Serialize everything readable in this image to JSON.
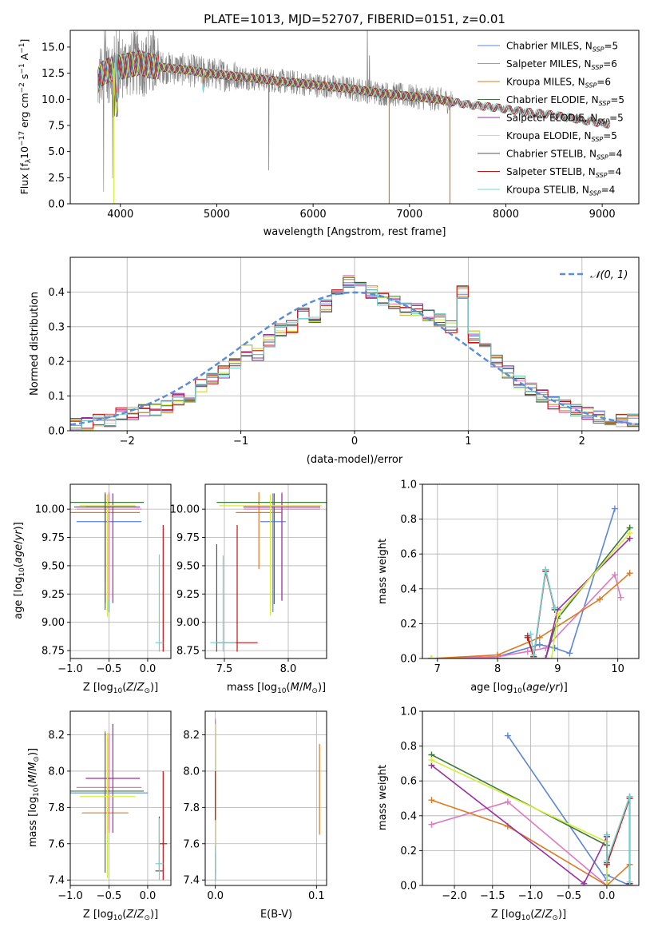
{
  "title": "PLATE=1013, MJD=52707, FIBERID=0151, z=0.01",
  "colors": {
    "chabrier_miles": "#5b86d9",
    "salpeter_miles": "#e079bd",
    "kroupa_miles": "#dd7a20",
    "chabrier_elodie": "#3f7a3c",
    "salpeter_elodie": "#9b2fa2",
    "kroupa_elodie": "#d6ee3a",
    "chabrier_stelib": "#555555",
    "salpeter_stelib": "#cc1010",
    "kroupa_stelib": "#72d3d3",
    "data": "#808080",
    "gaussian": "#5b8ed8"
  },
  "legend_spectrum": [
    {
      "label": "Chabrier MILES, N",
      "sub": "SSP",
      "suffix": "=5",
      "color": "#5b86d9"
    },
    {
      "label": "Salpeter MILES, N",
      "sub": "SSP",
      "suffix": "=6",
      "color": "#e079bd"
    },
    {
      "label": "Kroupa MILES, N",
      "sub": "SSP",
      "suffix": "=6",
      "color": "#dd7a20"
    },
    {
      "label": "Chabrier ELODIE, N",
      "sub": "SSP",
      "suffix": "=5",
      "color": "#3f7a3c"
    },
    {
      "label": "Salpeter ELODIE, N",
      "sub": "SSP",
      "suffix": "=5",
      "color": "#9b2fa2"
    },
    {
      "label": "Kroupa ELODIE, N",
      "sub": "SSP",
      "suffix": "=5",
      "color": "#d6ee3a"
    },
    {
      "label": "Chabrier STELIB, N",
      "sub": "SSP",
      "suffix": "=4",
      "color": "#555555"
    },
    {
      "label": "Salpeter STELIB, N",
      "sub": "SSP",
      "suffix": "=4",
      "color": "#cc1010"
    },
    {
      "label": "Kroupa STELIB, N",
      "sub": "SSP",
      "suffix": "=4",
      "color": "#72d3d3"
    }
  ],
  "legend_hist": {
    "label": "𝒩(0, 1)"
  },
  "chart_data": [
    {
      "id": "spectrum",
      "type": "line",
      "title": "PLATE=1013, MJD=52707, FIBERID=0151, z=0.01",
      "xlabel": "wavelength [Angstrom, rest frame]",
      "ylabel": "Flux [f_λ 10^-17 erg cm^-2 s^-1 A^-1]",
      "xlim": [
        3480,
        9380
      ],
      "ylim": [
        0,
        16.6
      ],
      "xticks": [
        4000,
        5000,
        6000,
        7000,
        8000,
        9000
      ],
      "yticks": [
        0.0,
        2.5,
        5.0,
        7.5,
        10.0,
        12.5,
        15.0
      ],
      "continuum": {
        "x": [
          3760,
          3800,
          3900,
          4000,
          4100,
          4200,
          4300,
          4500,
          4700,
          4900,
          5100,
          5300,
          5500,
          5800,
          6100,
          6400,
          6700,
          7000,
          7300,
          7600,
          7900,
          8200,
          8500,
          8800,
          9080
        ],
        "y": [
          11.6,
          12.4,
          12.9,
          13.1,
          13.3,
          13.5,
          13.2,
          13.0,
          12.8,
          12.5,
          12.3,
          12.1,
          11.9,
          11.6,
          11.3,
          11.0,
          10.6,
          10.3,
          10.0,
          9.5,
          9.2,
          8.8,
          8.5,
          8.0,
          7.6
        ]
      },
      "model_dips": [
        {
          "x": 3933,
          "y": 0
        },
        {
          "x": 6790,
          "y": 0
        },
        {
          "x": 7420,
          "y": 0
        }
      ],
      "data_spikes": [
        {
          "x": 5540,
          "y": 3.2
        },
        {
          "x": 6563,
          "y": 16.6
        },
        {
          "x": 6585,
          "y": 14.2
        },
        {
          "x": 4340,
          "y": 16.6
        }
      ]
    },
    {
      "id": "residual_hist",
      "type": "line",
      "xlabel": "(data-model)/error",
      "ylabel": "Normed distribution",
      "xlim": [
        -2.5,
        2.5
      ],
      "ylim": [
        0,
        0.5
      ],
      "xticks": [
        -2,
        -1,
        0,
        1,
        2
      ],
      "yticks": [
        0.0,
        0.1,
        0.2,
        0.3,
        0.4
      ],
      "bin_width": 0.1,
      "bin_start": -2.5,
      "gaussian": {
        "name": "𝒩(0, 1)",
        "mu": 0,
        "sigma": 1
      },
      "series_values": [
        [
          0.02,
          0.02,
          0.03,
          0.03,
          0.05,
          0.05,
          0.06,
          0.06,
          0.07,
          0.09,
          0.1,
          0.13,
          0.15,
          0.17,
          0.19,
          0.23,
          0.22,
          0.26,
          0.29,
          0.3,
          0.34,
          0.33,
          0.36,
          0.4,
          0.43,
          0.41,
          0.4,
          0.38,
          0.37,
          0.35,
          0.35,
          0.33,
          0.32,
          0.3,
          0.4,
          0.27,
          0.24,
          0.2,
          0.17,
          0.14,
          0.12,
          0.1,
          0.08,
          0.07,
          0.06,
          0.05,
          0.04,
          0.03,
          0.03,
          0.03
        ]
      ]
    },
    {
      "id": "age_vs_Z",
      "type": "scatter",
      "xlabel": "Z [log10(Z/Z☉)]",
      "ylabel": "age [log10(age/yr)]",
      "xlim": [
        -1.0,
        0.3
      ],
      "ylim": [
        8.68,
        10.22
      ],
      "xticks": [
        -1.0,
        -0.5,
        0.0
      ],
      "yticks": [
        8.75,
        9.0,
        9.25,
        9.5,
        9.75,
        10.0
      ],
      "points": [
        {
          "x": -0.5,
          "y": 9.89,
          "xerr": 0.42,
          "yerr": [
            0.8,
            0.25
          ],
          "color": "#5b86d9"
        },
        {
          "x": -0.5,
          "y": 10.0,
          "xerr": 0.42,
          "yerr": [
            0.8,
            0.15
          ],
          "color": "#e079bd"
        },
        {
          "x": -0.55,
          "y": 9.97,
          "xerr": 0.45,
          "yerr": [
            0.6,
            0.18
          ],
          "color": "#dd7a20"
        },
        {
          "x": -0.55,
          "y": 10.06,
          "xerr": 0.5,
          "yerr": [
            0.95,
            0.08
          ],
          "color": "#3f7a3c"
        },
        {
          "x": -0.45,
          "y": 10.02,
          "xerr": 0.35,
          "yerr": [
            0.85,
            0.12
          ],
          "color": "#9b2fa2"
        },
        {
          "x": -0.52,
          "y": 10.03,
          "xerr": 0.36,
          "yerr": [
            0.98,
            0.1
          ],
          "color": "#d6ee3a"
        },
        {
          "x": -0.55,
          "y": 10.02,
          "xerr": 0.4,
          "yerr": [
            0.85,
            0.11
          ],
          "color": "#555555"
        },
        {
          "x": 0.2,
          "y": 8.82,
          "xerr": 0.0,
          "yerr": [
            0.08,
            1.04
          ],
          "color": "#cc1010"
        },
        {
          "x": 0.15,
          "y": 8.82,
          "xerr": 0.05,
          "yerr": [
            0.08,
            0.78
          ],
          "color": "#72d3d3"
        }
      ]
    },
    {
      "id": "age_vs_mass",
      "type": "scatter",
      "xlabel": "mass [log10(M/M☉)]",
      "ylabel": "",
      "xlim": [
        7.35,
        8.3
      ],
      "ylim": [
        8.68,
        10.22
      ],
      "xticks": [
        7.5,
        8.0
      ],
      "yticks": [
        8.75,
        9.0,
        9.25,
        9.5,
        9.75,
        10.0
      ],
      "points": [
        {
          "x": 7.88,
          "y": 9.89,
          "xerr": 0.1,
          "yerr": [
            0.8,
            0.25
          ],
          "color": "#5b86d9"
        },
        {
          "x": 7.95,
          "y": 10.0,
          "xerr": 0.3,
          "yerr": [
            0.8,
            0.15
          ],
          "color": "#e079bd"
        },
        {
          "x": 7.77,
          "y": 9.97,
          "xerr": 0.18,
          "yerr": [
            0.5,
            0.18
          ],
          "color": "#dd7a20"
        },
        {
          "x": 7.89,
          "y": 10.06,
          "xerr": 0.45,
          "yerr": [
            0.9,
            0.08
          ],
          "color": "#3f7a3c"
        },
        {
          "x": 7.95,
          "y": 10.02,
          "xerr": 0.3,
          "yerr": [
            0.83,
            0.12
          ],
          "color": "#9b2fa2"
        },
        {
          "x": 7.86,
          "y": 10.03,
          "xerr": 0.4,
          "yerr": [
            0.97,
            0.1
          ],
          "color": "#d6ee3a"
        },
        {
          "x": 7.44,
          "y": 8.82,
          "xerr": 0.0,
          "yerr": [
            0.08,
            0.87
          ],
          "color": "#555555"
        },
        {
          "x": 7.6,
          "y": 8.82,
          "xerr": 0.16,
          "yerr": [
            0.08,
            1.04
          ],
          "color": "#cc1010"
        },
        {
          "x": 7.49,
          "y": 8.82,
          "xerr": 0.1,
          "yerr": [
            0.08,
            0.77
          ],
          "color": "#72d3d3"
        }
      ]
    },
    {
      "id": "mass_weight_vs_age",
      "type": "line",
      "xlabel": "age [log10(age/yr)]",
      "ylabel": "mass weight",
      "xlim": [
        6.75,
        10.35
      ],
      "ylim": [
        0,
        1.0
      ],
      "xticks": [
        7,
        8,
        9,
        10
      ],
      "yticks": [
        0.0,
        0.2,
        0.4,
        0.6,
        0.8,
        1.0
      ],
      "series": [
        {
          "name": "Chabrier MILES",
          "color": "#5b86d9",
          "x": [
            6.9,
            8.0,
            8.7,
            8.95,
            9.2,
            9.95
          ],
          "y": [
            0.0,
            0.01,
            0.08,
            0.06,
            0.03,
            0.86
          ]
        },
        {
          "name": "Salpeter MILES",
          "color": "#e079bd",
          "x": [
            6.9,
            8.0,
            8.5,
            8.8,
            9.95,
            10.05
          ],
          "y": [
            0.0,
            0.01,
            0.04,
            0.06,
            0.48,
            0.35
          ]
        },
        {
          "name": "Kroupa MILES",
          "color": "#dd7a20",
          "x": [
            6.9,
            8.0,
            8.7,
            9.7,
            10.2
          ],
          "y": [
            0.0,
            0.02,
            0.12,
            0.34,
            0.49
          ]
        },
        {
          "name": "Chabrier ELODIE",
          "color": "#3f7a3c",
          "x": [
            6.9,
            8.8,
            9.0,
            10.2
          ],
          "y": [
            0.0,
            0.0,
            0.23,
            0.75
          ]
        },
        {
          "name": "Salpeter ELODIE",
          "color": "#9b2fa2",
          "x": [
            6.9,
            8.8,
            9.0,
            10.2
          ],
          "y": [
            0.0,
            0.0,
            0.28,
            0.69
          ]
        },
        {
          "name": "Kroupa ELODIE",
          "color": "#d6ee3a",
          "x": [
            6.9,
            8.9,
            9.0,
            10.2
          ],
          "y": [
            0.0,
            0.0,
            0.25,
            0.72
          ]
        },
        {
          "name": "Chabrier STELIB",
          "color": "#555555",
          "x": [
            8.5,
            8.6,
            8.8,
            8.95
          ],
          "y": [
            0.13,
            0.01,
            0.51,
            0.28
          ]
        },
        {
          "name": "Salpeter STELIB",
          "color": "#cc1010",
          "x": [
            8.5,
            8.6,
            8.8,
            8.95
          ],
          "y": [
            0.12,
            0.01,
            0.5,
            0.29
          ]
        },
        {
          "name": "Kroupa STELIB",
          "color": "#72d3d3",
          "x": [
            8.55,
            8.6,
            8.8,
            8.95
          ],
          "y": [
            0.14,
            0.02,
            0.51,
            0.29
          ]
        }
      ]
    },
    {
      "id": "mass_vs_Z",
      "type": "scatter",
      "xlabel": "Z [log10(Z/Z☉)]",
      "ylabel": "mass [log10(M/M☉)]",
      "xlim": [
        -1.0,
        0.3
      ],
      "ylim": [
        7.37,
        8.33
      ],
      "xticks": [
        -1.0,
        -0.5,
        0.0
      ],
      "yticks": [
        7.4,
        7.6,
        7.8,
        8.0,
        8.2
      ],
      "points": [
        {
          "x": -0.5,
          "y": 7.88,
          "xerr": 0.5,
          "yerr": [
            0.2,
            0.3
          ],
          "color": "#5b86d9"
        },
        {
          "x": -0.5,
          "y": 7.91,
          "xerr": 0.42,
          "yerr": [
            0.25,
            0.3
          ],
          "color": "#e079bd"
        },
        {
          "x": -0.55,
          "y": 7.77,
          "xerr": 0.3,
          "yerr": [
            0.12,
            0.45
          ],
          "color": "#dd7a20"
        },
        {
          "x": -0.55,
          "y": 7.89,
          "xerr": 0.5,
          "yerr": [
            0.45,
            0.32
          ],
          "color": "#3f7a3c"
        },
        {
          "x": -0.45,
          "y": 7.96,
          "xerr": 0.35,
          "yerr": [
            0.3,
            0.3
          ],
          "color": "#9b2fa2"
        },
        {
          "x": -0.52,
          "y": 7.86,
          "xerr": 0.36,
          "yerr": [
            0.45,
            0.35
          ],
          "color": "#d6ee3a"
        },
        {
          "x": 0.15,
          "y": 7.45,
          "xerr": 0.05,
          "yerr": [
            0.0,
            0.3
          ],
          "color": "#555555"
        },
        {
          "x": 0.2,
          "y": 7.6,
          "xerr": 0.05,
          "yerr": [
            0.2,
            0.4
          ],
          "color": "#cc1010"
        },
        {
          "x": 0.15,
          "y": 7.49,
          "xerr": 0.05,
          "yerr": [
            0.09,
            0.25
          ],
          "color": "#72d3d3"
        }
      ]
    },
    {
      "id": "mass_vs_ebv",
      "type": "scatter",
      "xlabel": "E(B-V)",
      "ylabel": "",
      "xlim": [
        -0.01,
        0.11
      ],
      "ylim": [
        7.37,
        8.33
      ],
      "xticks": [
        0.0,
        0.1
      ],
      "yticks": [
        7.4,
        7.6,
        7.8,
        8.0,
        8.2
      ],
      "points": [
        {
          "x": 0.0,
          "y": 7.88,
          "yerr": [
            0.45,
            0.4
          ],
          "color": "#5b86d9"
        },
        {
          "x": 0.0,
          "y": 7.91,
          "yerr": [
            0.4,
            0.38
          ],
          "color": "#e079bd"
        },
        {
          "x": 0.103,
          "y": 7.9,
          "yerr": [
            0.25,
            0.25
          ],
          "color": "#dd7a20"
        },
        {
          "x": 0.0,
          "y": 7.89,
          "yerr": [
            0.45,
            0.35
          ],
          "color": "#3f7a3c"
        },
        {
          "x": 0.0,
          "y": 7.96,
          "yerr": [
            0.4,
            0.3
          ],
          "color": "#9b2fa2"
        },
        {
          "x": 0.0,
          "y": 7.86,
          "yerr": [
            0.4,
            0.4
          ],
          "color": "#d6ee3a"
        },
        {
          "x": 0.0,
          "y": 7.45,
          "yerr": [
            0.05,
            0.1
          ],
          "color": "#555555"
        },
        {
          "x": 0.0,
          "y": 7.88,
          "yerr": [
            0.15,
            0.12
          ],
          "color": "#cc1010"
        },
        {
          "x": 0.0,
          "y": 7.49,
          "yerr": [
            0.1,
            0.1
          ],
          "color": "#72d3d3"
        }
      ]
    },
    {
      "id": "mass_weight_vs_Z",
      "type": "line",
      "xlabel": "Z [log10(Z/Z☉)]",
      "ylabel": "mass weight",
      "xlim": [
        -2.42,
        0.42
      ],
      "ylim": [
        0,
        1.0
      ],
      "xticks": [
        -2.0,
        -1.5,
        -1.0,
        -0.5,
        0.0
      ],
      "yticks": [
        0.0,
        0.2,
        0.4,
        0.6,
        0.8,
        1.0
      ],
      "series": [
        {
          "name": "Chabrier MILES",
          "color": "#5b86d9",
          "x": [
            -1.3,
            0.0,
            0.0,
            0.3
          ],
          "y": [
            0.86,
            0.03,
            0.06,
            0.0
          ]
        },
        {
          "name": "Salpeter MILES",
          "color": "#e079bd",
          "x": [
            -2.3,
            -1.3,
            0.0,
            0.3
          ],
          "y": [
            0.35,
            0.48,
            0.0,
            0.0
          ]
        },
        {
          "name": "Kroupa MILES",
          "color": "#dd7a20",
          "x": [
            -2.3,
            -1.3,
            0.0,
            0.3,
            0.3
          ],
          "y": [
            0.49,
            0.34,
            0.0,
            0.12,
            0.0
          ]
        },
        {
          "name": "Chabrier ELODIE",
          "color": "#3f7a3c",
          "x": [
            -2.3,
            0.0,
            0.0,
            0.3
          ],
          "y": [
            0.75,
            0.23,
            0.0,
            0.0
          ]
        },
        {
          "name": "Salpeter ELODIE",
          "color": "#9b2fa2",
          "x": [
            -2.3,
            -0.3,
            0.0
          ],
          "y": [
            0.69,
            0.01,
            0.28
          ]
        },
        {
          "name": "Kroupa ELODIE",
          "color": "#d6ee3a",
          "x": [
            -2.3,
            0.0,
            0.0,
            0.3
          ],
          "y": [
            0.72,
            0.25,
            0.0,
            0.0
          ]
        },
        {
          "name": "Chabrier STELIB",
          "color": "#555555",
          "x": [
            0.0,
            0.0,
            0.3,
            0.3
          ],
          "y": [
            0.28,
            0.13,
            0.51,
            0.01
          ]
        },
        {
          "name": "Salpeter STELIB",
          "color": "#cc1010",
          "x": [
            0.0,
            0.0,
            0.3,
            0.3
          ],
          "y": [
            0.29,
            0.12,
            0.5,
            0.01
          ]
        },
        {
          "name": "Kroupa STELIB",
          "color": "#72d3d3",
          "x": [
            0.0,
            0.0,
            0.3,
            0.3
          ],
          "y": [
            0.29,
            0.14,
            0.51,
            0.02
          ]
        }
      ]
    }
  ]
}
